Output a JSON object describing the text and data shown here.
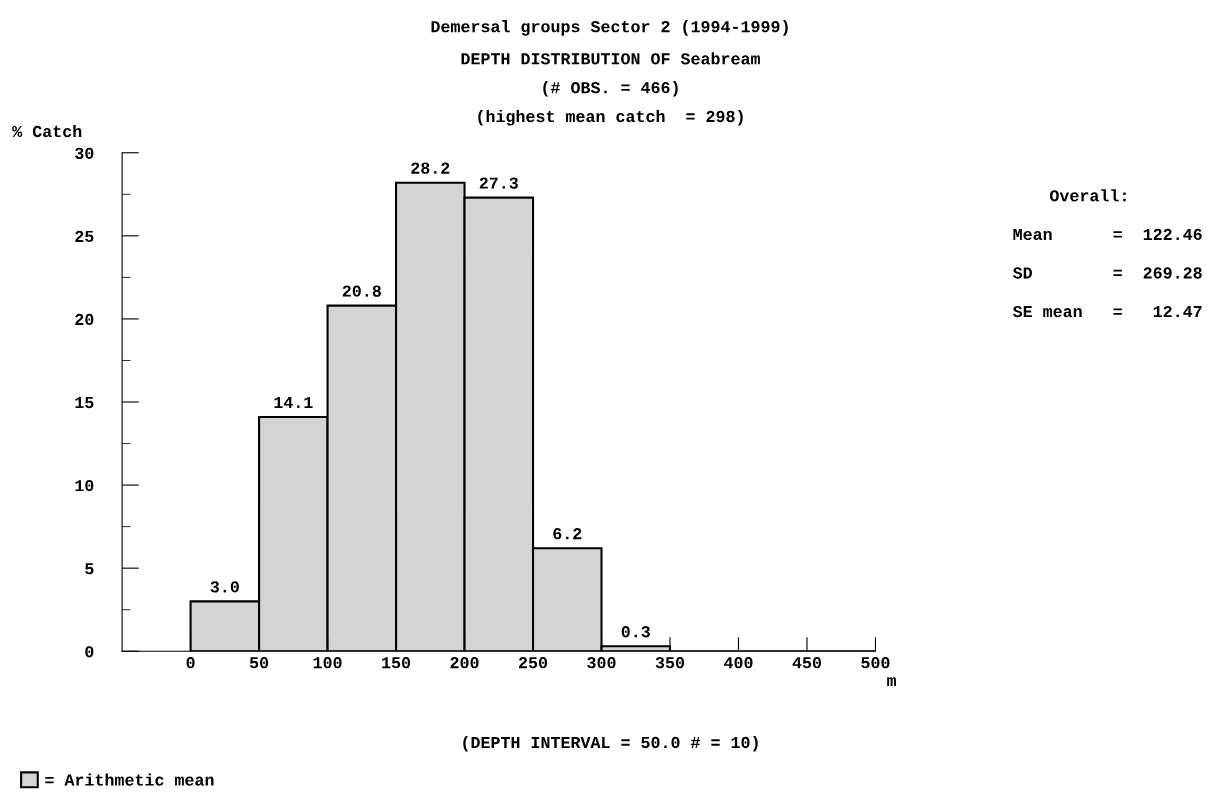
{
  "chart_data": {
    "type": "histogram",
    "title": "Demersal groups Sector 2 (1994-1999)",
    "subtitle": "DEPTH DISTRIBUTION OF Seabream\n(# OBS. = 466)\n(highest mean catch  = 298)",
    "ylabel": "% Catch",
    "xlabel": "m",
    "bins": [
      0,
      50,
      100,
      150,
      200,
      250,
      300,
      350,
      400,
      450,
      500
    ],
    "series": [
      {
        "name": "= Arithmetic mean",
        "color": "#d4d4d4",
        "values": [
          3.0,
          14.1,
          20.8,
          28.2,
          27.3,
          6.2,
          0.3,
          0,
          0,
          0
        ],
        "value_labels": [
          "3.0",
          "14.1",
          "20.8",
          "28.2",
          "27.3",
          "6.2",
          "0.3",
          null,
          null,
          null
        ]
      }
    ],
    "xlim": [
      -50,
      500
    ],
    "xticks": [
      0,
      50,
      100,
      150,
      200,
      250,
      300,
      350,
      400,
      450,
      500
    ],
    "ylim": [
      0,
      30
    ],
    "yticks": [
      0,
      5,
      10,
      15,
      20,
      25,
      30
    ],
    "grid": false,
    "legend": "bottom left",
    "annotations": [
      "Overall:",
      "Mean      =  122.46",
      "SD        =  269.28",
      "SE mean   =   12.47",
      "(DEPTH INTERVAL = 50.0 # = 10)"
    ]
  }
}
